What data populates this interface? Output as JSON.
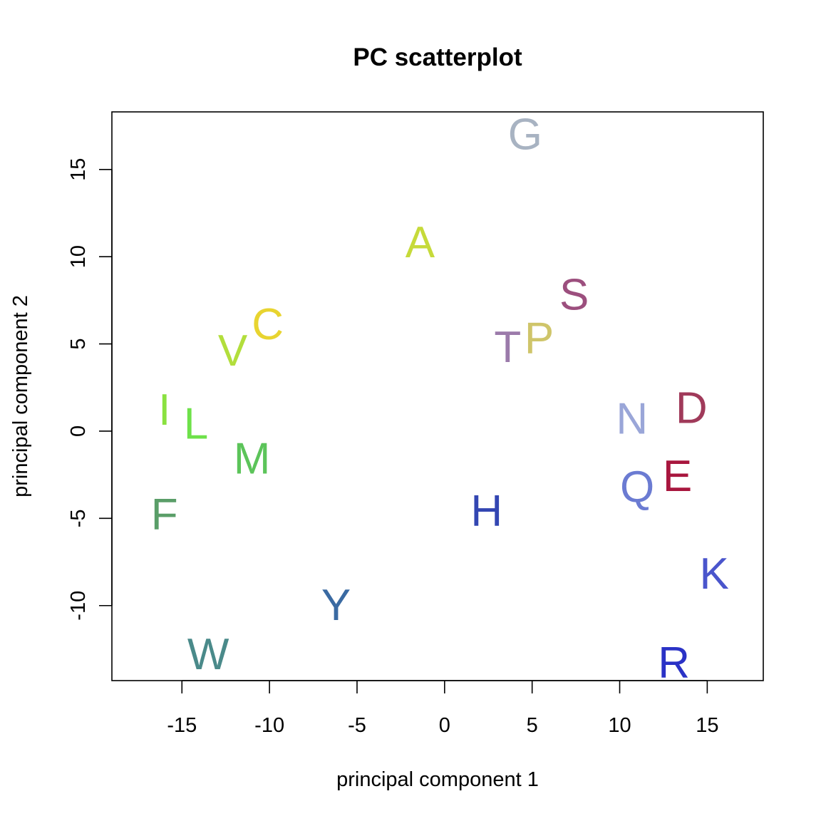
{
  "chart_data": {
    "type": "scatter",
    "title": "PC scatterplot",
    "xlabel": "principal component 1",
    "ylabel": "principal component 2",
    "xlim": [
      -19,
      18.2
    ],
    "ylim": [
      -14.3,
      18.3
    ],
    "xticks": [
      -15,
      -10,
      -5,
      0,
      5,
      10,
      15
    ],
    "yticks": [
      -10,
      -5,
      0,
      5,
      10,
      15
    ],
    "grid": false,
    "legend": "none",
    "points": [
      {
        "label": "G",
        "x": 4.6,
        "y": 17.0,
        "color": "#a8b3c2"
      },
      {
        "label": "A",
        "x": -1.4,
        "y": 10.8,
        "color": "#c6da3a"
      },
      {
        "label": "S",
        "x": 7.4,
        "y": 7.8,
        "color": "#9c4f7e"
      },
      {
        "label": "P",
        "x": 5.4,
        "y": 5.3,
        "color": "#cfc56a"
      },
      {
        "label": "T",
        "x": 3.6,
        "y": 4.8,
        "color": "#9b7aaa"
      },
      {
        "label": "C",
        "x": -10.1,
        "y": 6.1,
        "color": "#e8d430"
      },
      {
        "label": "V",
        "x": -12.1,
        "y": 4.6,
        "color": "#b2de3c"
      },
      {
        "label": "I",
        "x": -16.0,
        "y": 1.2,
        "color": "#8ae140"
      },
      {
        "label": "L",
        "x": -14.2,
        "y": 0.4,
        "color": "#6ee14a"
      },
      {
        "label": "M",
        "x": -11.0,
        "y": -1.6,
        "color": "#5cc45a"
      },
      {
        "label": "F",
        "x": -16.0,
        "y": -4.8,
        "color": "#5a9e68"
      },
      {
        "label": "N",
        "x": 10.7,
        "y": 0.7,
        "color": "#9aa6d8"
      },
      {
        "label": "D",
        "x": 14.1,
        "y": 1.3,
        "color": "#a03a5a"
      },
      {
        "label": "E",
        "x": 13.3,
        "y": -2.6,
        "color": "#a8163e"
      },
      {
        "label": "Q",
        "x": 11.0,
        "y": -3.2,
        "color": "#6b7bd2"
      },
      {
        "label": "H",
        "x": 2.4,
        "y": -4.6,
        "color": "#3346b2"
      },
      {
        "label": "K",
        "x": 15.4,
        "y": -8.2,
        "color": "#4a55cc"
      },
      {
        "label": "Y",
        "x": -6.2,
        "y": -10.0,
        "color": "#3a6aa2"
      },
      {
        "label": "W",
        "x": -13.5,
        "y": -12.8,
        "color": "#4a8a8a"
      },
      {
        "label": "R",
        "x": 13.1,
        "y": -13.3,
        "color": "#2a32c6"
      }
    ]
  }
}
